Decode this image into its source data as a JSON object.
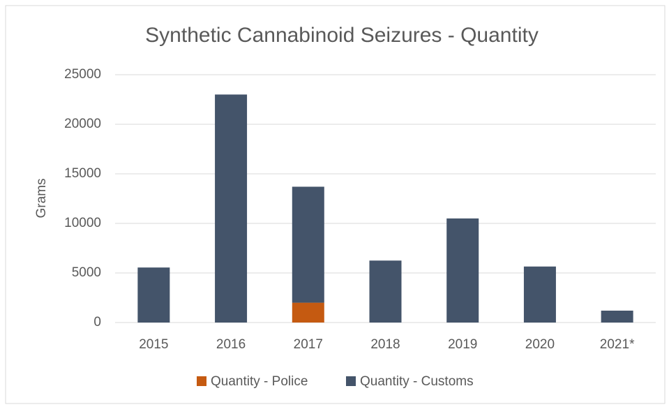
{
  "chart_data": {
    "type": "stacked_bar",
    "title": "Synthetic Cannabinoid Seizures - Quantity",
    "y_label": "Grams",
    "categories": [
      "2015",
      "2016",
      "2017",
      "2018",
      "2019",
      "2020",
      "2021*"
    ],
    "series": [
      {
        "name": "Quantity - Police",
        "color": "#c55a11",
        "values": [
          0,
          0,
          2000,
          0,
          0,
          0,
          0
        ]
      },
      {
        "name": "Quantity - Customs",
        "color": "#44546a",
        "values": [
          5550,
          23000,
          11700,
          6250,
          10500,
          5650,
          1200
        ]
      }
    ],
    "ylim": [
      0,
      25000
    ],
    "yticks": [
      0,
      5000,
      10000,
      15000,
      20000,
      25000
    ],
    "grid": true,
    "legend": "bottom"
  }
}
